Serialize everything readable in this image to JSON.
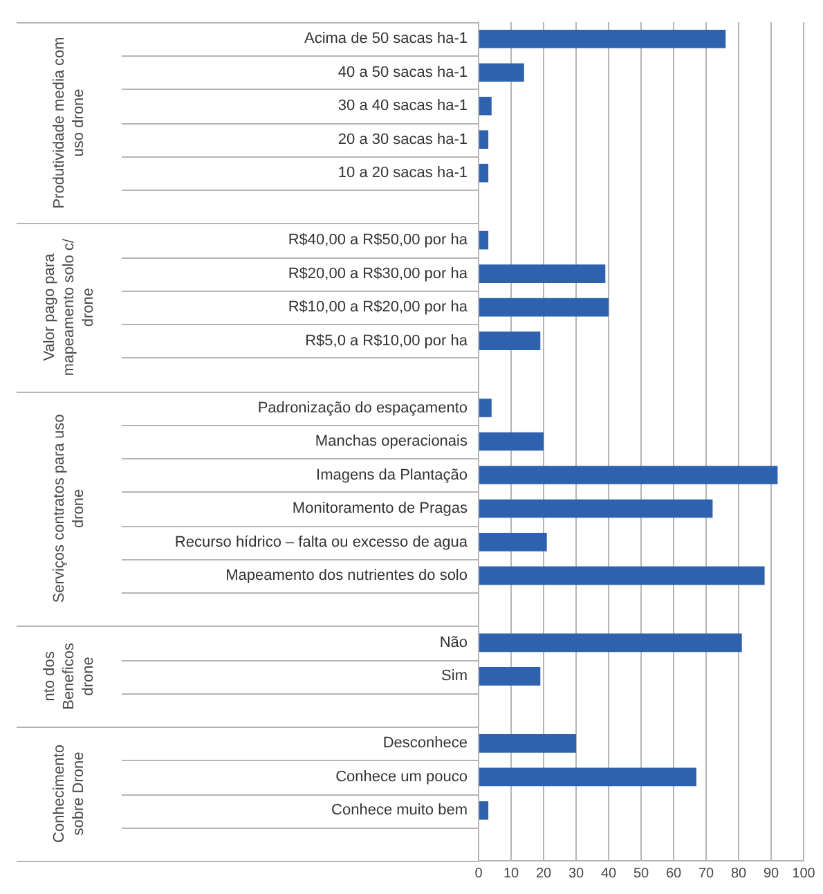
{
  "chart_data": {
    "type": "bar",
    "orientation": "horizontal",
    "categories": [
      "Acima de 50 sacas ha-1",
      "40 a 50 sacas ha-1",
      "30 a 40 sacas ha-1",
      "20 a 30 sacas ha-1",
      "10 a 20 sacas ha-1",
      null,
      "R$40,00 a R$50,00 por ha",
      "R$20,00 a R$30,00 por ha",
      "R$10,00 a R$20,00 por ha",
      "R$5,0 a R$10,00 por ha",
      null,
      "Padronização do espaçamento",
      "Manchas operacionais",
      "Imagens da Plantação",
      "Monitoramento de Pragas",
      "Recurso hídrico – falta ou excesso de agua",
      "Mapeamento dos nutrientes do solo",
      null,
      "Não",
      "Sim",
      null,
      "Desconhece",
      "Conhece um pouco",
      "Conhece muito bem",
      null
    ],
    "values": [
      76,
      14,
      4,
      3,
      3,
      null,
      3,
      39,
      40,
      19,
      null,
      4,
      20,
      92,
      72,
      21,
      88,
      null,
      81,
      19,
      null,
      30,
      67,
      3,
      null
    ],
    "color": "#2f62ae",
    "xlim": [
      0,
      100
    ],
    "xticks": [
      0,
      10,
      20,
      30,
      40,
      50,
      60,
      70,
      80,
      90,
      100
    ],
    "grid": "x",
    "annotations": [
      "Produtividade media com uso drone",
      "Valor pago para mapeamento solo c/ drone",
      "Serviços contratos para uso drone",
      "nto dos Beneficos drone",
      "Conhecimento sobre Drone"
    ]
  }
}
